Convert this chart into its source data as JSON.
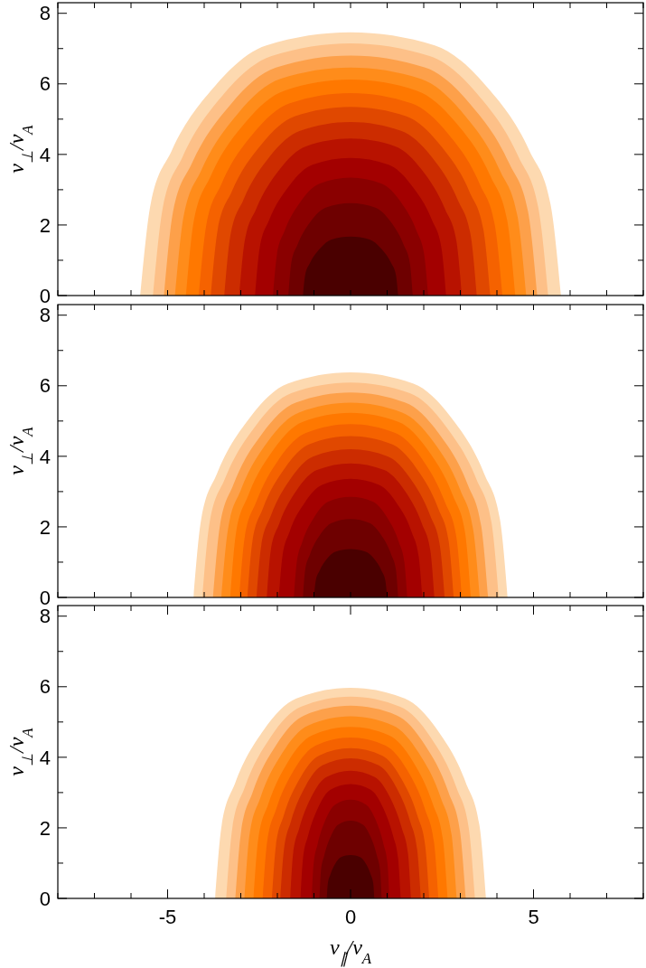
{
  "chart_data": [
    {
      "type": "area",
      "ylabel": "v$_{⊥}$/v$_{A}$",
      "xlim": [
        -8,
        8
      ],
      "ylim": [
        0,
        8.3
      ],
      "tick_labels": "y",
      "xticks": [
        {
          "value": -8,
          "label": null
        },
        {
          "value": -7,
          "label": null
        },
        {
          "value": -6,
          "label": null
        },
        {
          "value": -5,
          "label": null
        },
        {
          "value": -4,
          "label": null
        },
        {
          "value": -3,
          "label": null
        },
        {
          "value": -2,
          "label": null
        },
        {
          "value": -1,
          "label": null
        },
        {
          "value": 0,
          "label": null
        },
        {
          "value": 1,
          "label": null
        },
        {
          "value": 2,
          "label": null
        },
        {
          "value": 3,
          "label": null
        },
        {
          "value": 4,
          "label": null
        },
        {
          "value": 5,
          "label": null
        },
        {
          "value": 6,
          "label": null
        },
        {
          "value": 7,
          "label": null
        },
        {
          "value": 8,
          "label": null
        }
      ],
      "yticks": [
        0,
        {
          "value": 1,
          "label": null
        },
        2,
        {
          "value": 3,
          "label": null
        },
        4,
        {
          "value": 5,
          "label": null
        },
        6,
        {
          "value": 7,
          "label": null
        },
        8
      ],
      "series": [
        {
          "color": "#fdd9b0",
          "x": [
            -5.75,
            -5.46,
            -4.89,
            -3.68,
            -2.3,
            0,
            2.3,
            3.68,
            4.89,
            5.46,
            5.75
          ],
          "values": [
            0,
            2.61,
            4.1,
            5.97,
            7.09,
            7.46,
            7.09,
            5.97,
            4.1,
            2.61,
            0
          ]
        },
        {
          "color": "#fdc088",
          "x": [
            -5.4,
            -5.13,
            -4.59,
            -3.46,
            -2.16,
            0,
            2.16,
            3.46,
            4.59,
            5.13,
            5.4
          ],
          "values": [
            0,
            2.5,
            3.93,
            5.72,
            6.79,
            7.15,
            6.79,
            5.72,
            3.93,
            2.5,
            0
          ]
        },
        {
          "color": "#fda04a",
          "x": [
            -5.1,
            -4.85,
            -4.34,
            -3.26,
            -2.04,
            0,
            2.04,
            3.26,
            4.34,
            4.85,
            5.1
          ],
          "values": [
            0,
            2.38,
            3.74,
            5.44,
            6.46,
            6.8,
            6.46,
            5.44,
            3.74,
            2.38,
            0
          ]
        },
        {
          "color": "#ff8c1a",
          "x": [
            -4.8,
            -4.56,
            -4.08,
            -3.07,
            -1.92,
            0,
            1.92,
            3.07,
            4.08,
            4.56,
            4.8
          ],
          "values": [
            0,
            2.26,
            3.55,
            5.17,
            6.14,
            6.46,
            6.14,
            5.17,
            3.55,
            2.26,
            0
          ]
        },
        {
          "color": "#ff7800",
          "x": [
            -4.5,
            -4.28,
            -3.83,
            -2.88,
            -1.8,
            0,
            1.8,
            2.88,
            3.83,
            4.28,
            4.5
          ],
          "values": [
            0,
            2.14,
            3.37,
            4.9,
            5.81,
            6.12,
            5.81,
            4.9,
            3.37,
            2.14,
            0
          ]
        },
        {
          "color": "#f56200",
          "x": [
            -4.15,
            -3.94,
            -3.53,
            -2.66,
            -1.66,
            0,
            1.66,
            2.66,
            3.53,
            3.94,
            4.15
          ],
          "values": [
            0,
            2.01,
            3.16,
            4.59,
            5.45,
            5.74,
            5.45,
            4.59,
            3.16,
            2.01,
            0
          ]
        },
        {
          "color": "#e04800",
          "x": [
            -3.82,
            -3.63,
            -3.25,
            -2.44,
            -1.53,
            0,
            1.53,
            2.44,
            3.25,
            3.63,
            3.82
          ],
          "values": [
            0,
            1.87,
            2.94,
            4.28,
            5.08,
            5.35,
            5.08,
            4.28,
            2.94,
            1.87,
            0
          ]
        },
        {
          "color": "#cc2c00",
          "x": [
            -3.45,
            -3.28,
            -2.93,
            -2.21,
            -1.38,
            0,
            1.38,
            2.21,
            2.93,
            3.28,
            3.45
          ],
          "values": [
            0,
            1.72,
            2.71,
            3.94,
            4.67,
            4.92,
            4.67,
            3.94,
            2.71,
            1.72,
            0
          ]
        },
        {
          "color": "#b81200",
          "x": [
            -3.04,
            -2.89,
            -2.58,
            -1.95,
            -1.22,
            0,
            1.22,
            1.95,
            2.58,
            2.89,
            3.04
          ],
          "values": [
            0,
            1.56,
            2.45,
            3.56,
            4.23,
            4.45,
            4.23,
            3.56,
            2.45,
            1.56,
            0
          ]
        },
        {
          "color": "#a30000",
          "x": [
            -2.61,
            -2.48,
            -2.22,
            -1.67,
            -1.04,
            0,
            1.04,
            1.67,
            2.22,
            2.48,
            2.61
          ],
          "values": [
            0,
            1.37,
            2.15,
            3.12,
            3.71,
            3.9,
            3.71,
            3.12,
            2.15,
            1.37,
            0
          ]
        },
        {
          "color": "#8a0000",
          "x": [
            -2.12,
            -2.01,
            -1.8,
            -1.36,
            -0.85,
            0,
            0.85,
            1.36,
            1.8,
            2.01,
            2.12
          ],
          "values": [
            0,
            1.17,
            1.84,
            2.67,
            3.17,
            3.34,
            3.17,
            2.67,
            1.84,
            1.17,
            0
          ]
        },
        {
          "color": "#6e0000",
          "x": [
            -1.7,
            -1.62,
            -1.45,
            -1.09,
            -0.68,
            0,
            0.68,
            1.09,
            1.45,
            1.62,
            1.7
          ],
          "values": [
            0,
            0.92,
            1.44,
            2.1,
            2.49,
            2.62,
            2.49,
            2.1,
            1.44,
            0.92,
            0
          ]
        },
        {
          "color": "#4a0000",
          "x": [
            -1.3,
            -1.24,
            -1.11,
            -0.83,
            -0.52,
            0,
            0.52,
            0.83,
            1.11,
            1.24,
            1.3
          ],
          "values": [
            0,
            0.58,
            0.92,
            1.34,
            1.59,
            1.67,
            1.59,
            1.34,
            0.92,
            0.58,
            0
          ]
        }
      ]
    },
    {
      "type": "area",
      "ylabel": "v$_{⊥}$/v$_{A}$",
      "xlim": [
        -8,
        8
      ],
      "ylim": [
        0,
        8.3
      ],
      "tick_labels": "y",
      "xticks": [
        {
          "value": -8,
          "label": null
        },
        {
          "value": -7,
          "label": null
        },
        {
          "value": -6,
          "label": null
        },
        {
          "value": -5,
          "label": null
        },
        {
          "value": -4,
          "label": null
        },
        {
          "value": -3,
          "label": null
        },
        {
          "value": -2,
          "label": null
        },
        {
          "value": -1,
          "label": null
        },
        {
          "value": 0,
          "label": null
        },
        {
          "value": 1,
          "label": null
        },
        {
          "value": 2,
          "label": null
        },
        {
          "value": 3,
          "label": null
        },
        {
          "value": 4,
          "label": null
        },
        {
          "value": 5,
          "label": null
        },
        {
          "value": 6,
          "label": null
        },
        {
          "value": 7,
          "label": null
        },
        {
          "value": 8,
          "label": null
        }
      ],
      "yticks": [
        0,
        {
          "value": 1,
          "label": null
        },
        2,
        {
          "value": 3,
          "label": null
        },
        4,
        {
          "value": 5,
          "label": null
        },
        6,
        {
          "value": 7,
          "label": null
        },
        8
      ],
      "series": [
        {
          "color": "#fdd9b0",
          "x": [
            -4.29,
            -4.08,
            -3.65,
            -2.75,
            -1.72,
            0,
            1.72,
            2.75,
            3.65,
            4.08,
            4.29
          ],
          "values": [
            0,
            2.23,
            3.51,
            5.1,
            6.06,
            6.38,
            6.06,
            5.1,
            3.51,
            2.23,
            0
          ]
        },
        {
          "color": "#fdc088",
          "x": [
            -4.05,
            -3.85,
            -3.44,
            -2.59,
            -1.62,
            0,
            1.62,
            2.59,
            3.44,
            3.85,
            4.05
          ],
          "values": [
            0,
            2.13,
            3.35,
            4.87,
            5.79,
            6.09,
            5.79,
            4.87,
            3.35,
            2.13,
            0
          ]
        },
        {
          "color": "#fda04a",
          "x": [
            -3.76,
            -3.57,
            -3.2,
            -2.41,
            -1.5,
            0,
            1.5,
            2.41,
            3.2,
            3.57,
            3.76
          ],
          "values": [
            0,
            2.03,
            3.2,
            4.65,
            5.52,
            5.81,
            5.52,
            4.65,
            3.2,
            2.03,
            0
          ]
        },
        {
          "color": "#ff8c1a",
          "x": [
            -3.53,
            -3.35,
            -3.0,
            -2.26,
            -1.41,
            0,
            1.41,
            2.26,
            3.0,
            3.35,
            3.53
          ],
          "values": [
            0,
            1.93,
            3.04,
            4.42,
            5.24,
            5.52,
            5.24,
            4.42,
            3.04,
            1.93,
            0
          ]
        },
        {
          "color": "#ff7800",
          "x": [
            -3.29,
            -3.13,
            -2.8,
            -2.11,
            -1.32,
            0,
            1.32,
            2.11,
            2.8,
            3.13,
            3.29
          ],
          "values": [
            0,
            1.83,
            2.88,
            4.18,
            4.97,
            5.23,
            4.97,
            4.18,
            2.88,
            1.83,
            0
          ]
        },
        {
          "color": "#f56200",
          "x": [
            -3.04,
            -2.89,
            -2.58,
            -1.95,
            -1.22,
            0,
            1.22,
            1.95,
            2.58,
            2.89,
            3.04
          ],
          "values": [
            0,
            1.72,
            2.7,
            3.93,
            4.66,
            4.91,
            4.66,
            3.93,
            2.7,
            1.72,
            0
          ]
        },
        {
          "color": "#e04800",
          "x": [
            -2.82,
            -2.68,
            -2.4,
            -1.8,
            -1.13,
            0,
            1.13,
            1.8,
            2.4,
            2.68,
            2.82
          ],
          "values": [
            0,
            1.6,
            2.51,
            3.66,
            4.34,
            4.57,
            4.34,
            3.66,
            2.51,
            1.6,
            0
          ]
        },
        {
          "color": "#cc2c00",
          "x": [
            -2.57,
            -2.44,
            -2.18,
            -1.64,
            -1.03,
            0,
            1.03,
            1.64,
            2.18,
            2.44,
            2.57
          ],
          "values": [
            0,
            1.47,
            2.31,
            3.36,
            3.99,
            4.2,
            3.99,
            3.36,
            2.31,
            1.47,
            0
          ]
        },
        {
          "color": "#b81200",
          "x": [
            -2.29,
            -2.18,
            -1.95,
            -1.47,
            -0.92,
            0,
            0.92,
            1.47,
            1.95,
            2.18,
            2.29
          ],
          "values": [
            0,
            1.33,
            2.09,
            3.04,
            3.61,
            3.8,
            3.61,
            3.04,
            2.09,
            1.33,
            0
          ]
        },
        {
          "color": "#a30000",
          "x": [
            -1.96,
            -1.86,
            -1.67,
            -1.25,
            -0.78,
            0,
            0.78,
            1.25,
            1.67,
            1.86,
            1.96
          ],
          "values": [
            0,
            1.18,
            1.85,
            2.69,
            3.19,
            3.36,
            3.19,
            2.69,
            1.85,
            1.18,
            0
          ]
        },
        {
          "color": "#8a0000",
          "x": [
            -1.55,
            -1.47,
            -1.32,
            -0.99,
            -0.62,
            0,
            0.62,
            0.99,
            1.32,
            1.47,
            1.55
          ],
          "values": [
            0,
            1.0,
            1.57,
            2.28,
            2.71,
            2.85,
            2.71,
            2.28,
            1.57,
            1.0,
            0
          ]
        },
        {
          "color": "#6e0000",
          "x": [
            -1.3,
            -1.24,
            -1.11,
            -0.83,
            -0.52,
            0,
            0.52,
            0.83,
            1.11,
            1.24,
            1.3
          ],
          "values": [
            0,
            0.78,
            1.22,
            1.78,
            2.11,
            2.22,
            2.11,
            1.78,
            1.22,
            0.78,
            0
          ]
        },
        {
          "color": "#4a0000",
          "x": [
            -1.0,
            -0.95,
            -0.85,
            -0.64,
            -0.4,
            0,
            0.4,
            0.64,
            0.85,
            0.95,
            1.0
          ],
          "values": [
            0,
            0.48,
            0.75,
            1.1,
            1.3,
            1.37,
            1.3,
            1.1,
            0.75,
            0.48,
            0
          ]
        }
      ]
    },
    {
      "type": "area",
      "xlabel": "v$_{∥}$/v$_{A}$",
      "ylabel": "v$_{⊥}$/v$_{A}$",
      "xlim": [
        -8,
        8
      ],
      "ylim": [
        0,
        8.3
      ],
      "xticks": [
        {
          "value": -8,
          "label": null
        },
        {
          "value": -7,
          "label": null
        },
        {
          "value": -6,
          "label": null
        },
        -5,
        {
          "value": -4,
          "label": null
        },
        {
          "value": -3,
          "label": null
        },
        {
          "value": -2,
          "label": null
        },
        {
          "value": -1,
          "label": null
        },
        0,
        {
          "value": 1,
          "label": null
        },
        {
          "value": 2,
          "label": null
        },
        {
          "value": 3,
          "label": null
        },
        {
          "value": 4,
          "label": null
        },
        5,
        {
          "value": 6,
          "label": null
        },
        {
          "value": 7,
          "label": null
        },
        {
          "value": 8,
          "label": null
        }
      ],
      "yticks": [
        0,
        {
          "value": 1,
          "label": null
        },
        2,
        {
          "value": 3,
          "label": null
        },
        4,
        {
          "value": 5,
          "label": null
        },
        6,
        {
          "value": 7,
          "label": null
        },
        8
      ],
      "series": [
        {
          "color": "#fdd9b0",
          "x": [
            -3.7,
            -3.52,
            -3.15,
            -2.37,
            -1.48,
            0,
            1.48,
            2.37,
            3.15,
            3.52,
            3.7
          ],
          "values": [
            0,
            2.09,
            3.28,
            4.78,
            5.67,
            5.97,
            5.67,
            4.78,
            3.28,
            2.09,
            0
          ]
        },
        {
          "color": "#fdc088",
          "x": [
            -3.4,
            -3.23,
            -2.89,
            -2.18,
            -1.36,
            0,
            1.36,
            2.18,
            2.89,
            3.23,
            3.4
          ],
          "values": [
            0,
            2.0,
            3.15,
            4.58,
            5.43,
            5.72,
            5.43,
            4.58,
            3.15,
            2.0,
            0
          ]
        },
        {
          "color": "#fda04a",
          "x": [
            -3.15,
            -2.99,
            -2.68,
            -2.02,
            -1.26,
            0,
            1.26,
            2.02,
            2.68,
            2.99,
            3.15
          ],
          "values": [
            0,
            1.91,
            3.0,
            4.37,
            5.19,
            5.46,
            5.19,
            4.37,
            3.0,
            1.91,
            0
          ]
        },
        {
          "color": "#ff8c1a",
          "x": [
            -2.9,
            -2.76,
            -2.47,
            -1.86,
            -1.16,
            0,
            1.16,
            1.86,
            2.47,
            2.76,
            2.9
          ],
          "values": [
            0,
            1.81,
            2.84,
            4.13,
            4.9,
            5.16,
            4.9,
            4.13,
            2.84,
            1.81,
            0
          ]
        },
        {
          "color": "#ff7800",
          "x": [
            -2.65,
            -2.52,
            -2.25,
            -1.7,
            -1.06,
            0,
            1.06,
            1.7,
            2.25,
            2.52,
            2.65
          ],
          "values": [
            0,
            1.7,
            2.67,
            3.89,
            4.62,
            4.86,
            4.62,
            3.89,
            2.67,
            1.7,
            0
          ]
        },
        {
          "color": "#f56200",
          "x": [
            -2.4,
            -2.28,
            -2.04,
            -1.54,
            -0.96,
            0,
            0.96,
            1.54,
            2.04,
            2.28,
            2.4
          ],
          "values": [
            0,
            1.6,
            2.51,
            3.65,
            4.33,
            4.56,
            4.33,
            3.65,
            2.51,
            1.6,
            0
          ]
        },
        {
          "color": "#e04800",
          "x": [
            -2.15,
            -2.04,
            -1.83,
            -1.38,
            -0.86,
            0,
            0.86,
            1.38,
            1.83,
            2.04,
            2.15
          ],
          "values": [
            0,
            1.49,
            2.34,
            3.41,
            4.05,
            4.26,
            4.05,
            3.41,
            2.34,
            1.49,
            0
          ]
        },
        {
          "color": "#cc2c00",
          "x": [
            -1.92,
            -1.82,
            -1.63,
            -1.23,
            -0.77,
            0,
            0.77,
            1.23,
            1.63,
            1.82,
            1.92
          ],
          "values": [
            0,
            1.39,
            2.18,
            3.18,
            3.77,
            3.97,
            3.77,
            3.18,
            2.18,
            1.39,
            0
          ]
        },
        {
          "color": "#b81200",
          "x": [
            -1.65,
            -1.57,
            -1.4,
            -1.06,
            -0.66,
            0,
            0.66,
            1.06,
            1.4,
            1.57,
            1.65
          ],
          "values": [
            0,
            1.27,
            1.99,
            2.9,
            3.44,
            3.62,
            3.44,
            2.9,
            1.99,
            1.27,
            0
          ]
        },
        {
          "color": "#a30000",
          "x": [
            -1.37,
            -1.3,
            -1.16,
            -0.88,
            -0.55,
            0,
            0.55,
            0.88,
            1.16,
            1.3,
            1.37
          ],
          "values": [
            0,
            1.13,
            1.78,
            2.59,
            3.08,
            3.24,
            3.08,
            2.59,
            1.78,
            1.13,
            0
          ]
        },
        {
          "color": "#8a0000",
          "x": [
            -1.06,
            -1.01,
            -0.9,
            -0.68,
            -0.42,
            0,
            0.42,
            0.68,
            0.9,
            1.01,
            1.06
          ],
          "values": [
            0,
            0.98,
            1.54,
            2.24,
            2.66,
            2.8,
            2.66,
            2.24,
            1.54,
            0.98,
            0
          ]
        },
        {
          "color": "#6e0000",
          "x": [
            -0.85,
            -0.81,
            -0.72,
            -0.54,
            -0.34,
            0,
            0.34,
            0.54,
            0.72,
            0.81,
            0.85
          ],
          "values": [
            0,
            0.77,
            1.21,
            1.76,
            2.09,
            2.2,
            2.09,
            1.76,
            1.21,
            0.77,
            0
          ]
        },
        {
          "color": "#4a0000",
          "x": [
            -0.65,
            -0.62,
            -0.55,
            -0.42,
            -0.26,
            0,
            0.26,
            0.42,
            0.55,
            0.62,
            0.65
          ],
          "values": [
            0,
            0.43,
            0.68,
            0.98,
            1.17,
            1.23,
            1.17,
            0.98,
            0.68,
            0.43,
            0
          ]
        }
      ]
    }
  ]
}
